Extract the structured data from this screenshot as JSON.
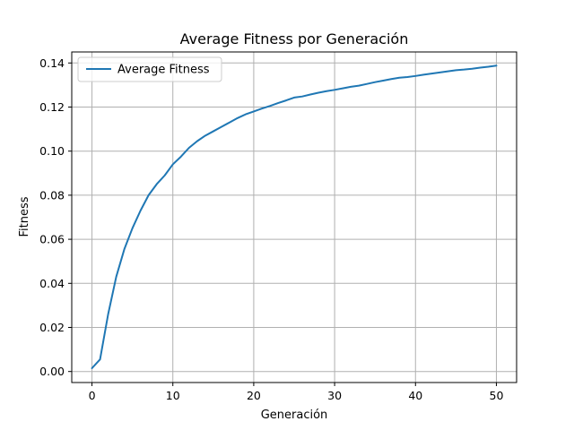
{
  "chart_data": {
    "type": "line",
    "title": "Average Fitness por Generación",
    "xlabel": "Generación",
    "ylabel": "Fitness",
    "xlim": [
      -2.5,
      52.5
    ],
    "ylim": [
      -0.005,
      0.145
    ],
    "xticks": [
      0,
      10,
      20,
      30,
      40,
      50
    ],
    "xtick_labels": [
      "0",
      "10",
      "20",
      "30",
      "40",
      "50"
    ],
    "yticks": [
      0.0,
      0.02,
      0.04,
      0.06,
      0.08,
      0.1,
      0.12,
      0.14
    ],
    "ytick_labels": [
      "0.00",
      "0.02",
      "0.04",
      "0.06",
      "0.08",
      "0.10",
      "0.12",
      "0.14"
    ],
    "grid": true,
    "legend_position": "upper-left",
    "series": [
      {
        "name": "Average Fitness",
        "color": "#1f77b4",
        "x": [
          0,
          1,
          2,
          3,
          4,
          5,
          6,
          7,
          8,
          9,
          10,
          11,
          12,
          13,
          14,
          15,
          16,
          17,
          18,
          19,
          20,
          21,
          22,
          23,
          24,
          25,
          26,
          27,
          28,
          29,
          30,
          31,
          32,
          33,
          34,
          35,
          36,
          37,
          38,
          39,
          40,
          41,
          42,
          43,
          44,
          45,
          46,
          47,
          48,
          49,
          50
        ],
        "values": [
          0.0015,
          0.0055,
          0.026,
          0.043,
          0.0555,
          0.065,
          0.073,
          0.08,
          0.085,
          0.089,
          0.094,
          0.0975,
          0.1015,
          0.1045,
          0.107,
          0.109,
          0.111,
          0.113,
          0.115,
          0.1167,
          0.118,
          0.1193,
          0.1205,
          0.1218,
          0.123,
          0.1243,
          0.1248,
          0.1257,
          0.1265,
          0.1272,
          0.1278,
          0.1285,
          0.1292,
          0.1297,
          0.1305,
          0.1313,
          0.132,
          0.1327,
          0.1333,
          0.1336,
          0.1341,
          0.1347,
          0.1352,
          0.1357,
          0.1362,
          0.1367,
          0.137,
          0.1374,
          0.1379,
          0.1383,
          0.1388
        ]
      }
    ]
  }
}
